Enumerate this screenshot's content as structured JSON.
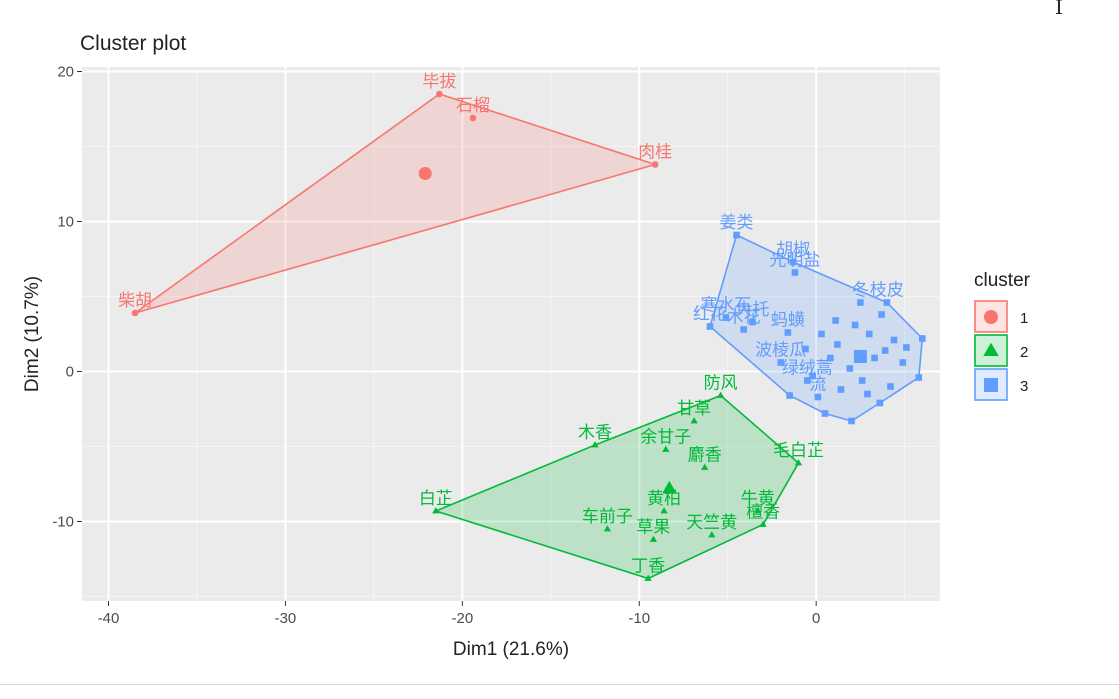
{
  "chart_data": {
    "type": "scatter",
    "title": "Cluster plot",
    "xlabel": "Dim1 (21.6%)",
    "ylabel": "Dim2 (10.7%)",
    "xlim": [
      -41.5,
      7
    ],
    "ylim": [
      -15.3,
      20.3
    ],
    "xticks": [
      -40,
      -30,
      -20,
      -10,
      0
    ],
    "yticks": [
      -10,
      0,
      10,
      20
    ],
    "xtick_labels": [
      "-40",
      "-30",
      "-20",
      "-10",
      "0"
    ],
    "ytick_labels": [
      "-10",
      "0",
      "10",
      "20"
    ],
    "grid": true,
    "legend": {
      "title": "cluster",
      "position": "right",
      "entries": [
        "1",
        "2",
        "3"
      ]
    },
    "colors": {
      "1": "#F8766D",
      "2": "#00BA38",
      "3": "#619CFF"
    },
    "series": [
      {
        "name": "1",
        "marker": "circle",
        "hull": [
          [
            -38.5,
            3.9
          ],
          [
            -21.3,
            18.5
          ],
          [
            -9.1,
            13.8
          ]
        ],
        "center": [
          -22.1,
          13.2
        ],
        "points": [
          {
            "x": -38.5,
            "y": 3.9,
            "label": "柴胡"
          },
          {
            "x": -21.3,
            "y": 18.5,
            "label": "毕拔"
          },
          {
            "x": -19.4,
            "y": 16.9,
            "label": "石榴"
          },
          {
            "x": -9.1,
            "y": 13.8,
            "label": "肉桂"
          }
        ]
      },
      {
        "name": "2",
        "marker": "triangle",
        "hull": [
          [
            -21.5,
            -9.3
          ],
          [
            -12.5,
            -4.9
          ],
          [
            -5.4,
            -1.6
          ],
          [
            -1.0,
            -6.1
          ],
          [
            -3.0,
            -10.2
          ],
          [
            -9.5,
            -13.8
          ]
        ],
        "center": [
          -8.3,
          -7.8
        ],
        "points": [
          {
            "x": -21.5,
            "y": -9.3,
            "label": "白芷"
          },
          {
            "x": -12.5,
            "y": -4.9,
            "label": "木香"
          },
          {
            "x": -8.5,
            "y": -5.2,
            "label": "余甘子"
          },
          {
            "x": -6.9,
            "y": -3.3,
            "label": "甘草"
          },
          {
            "x": -5.4,
            "y": -1.6,
            "label": "防风"
          },
          {
            "x": -6.3,
            "y": -6.4,
            "label": "麝香"
          },
          {
            "x": -1.0,
            "y": -6.1,
            "label": "毛白芷"
          },
          {
            "x": -8.6,
            "y": -9.3,
            "label": "黄柏"
          },
          {
            "x": -11.8,
            "y": -10.5,
            "label": "车前子"
          },
          {
            "x": -9.2,
            "y": -11.2,
            "label": "草果"
          },
          {
            "x": -5.9,
            "y": -10.9,
            "label": "天竺黄"
          },
          {
            "x": -3.3,
            "y": -9.3,
            "label": "牛黄"
          },
          {
            "x": -3.0,
            "y": -10.2,
            "label": "檀香"
          },
          {
            "x": -9.5,
            "y": -13.8,
            "label": "丁香"
          }
        ]
      },
      {
        "name": "3",
        "marker": "square",
        "hull": [
          [
            -4.5,
            9.1
          ],
          [
            -1.3,
            7.3
          ],
          [
            4.0,
            4.6
          ],
          [
            6.0,
            2.2
          ],
          [
            5.8,
            -0.4
          ],
          [
            3.6,
            -2.1
          ],
          [
            2.0,
            -3.3
          ],
          [
            0.5,
            -2.8
          ],
          [
            -1.5,
            -1.6
          ],
          [
            -6.0,
            3.0
          ]
        ],
        "center": [
          2.5,
          1.0
        ],
        "points": [
          {
            "x": -4.5,
            "y": 9.1,
            "label": "姜类"
          },
          {
            "x": -1.3,
            "y": 7.3,
            "label": "胡椒"
          },
          {
            "x": -1.2,
            "y": 6.6,
            "label": "光明盐"
          },
          {
            "x": -6.0,
            "y": 3.0,
            "label": "红花"
          },
          {
            "x": -5.1,
            "y": 3.6,
            "label": "寒水石"
          },
          {
            "x": -4.1,
            "y": 2.8,
            "label": "木花"
          },
          {
            "x": -3.6,
            "y": 3.3,
            "label": "大托"
          },
          {
            "x": -1.6,
            "y": 2.6,
            "label": "蚂蟥"
          },
          {
            "x": -2.0,
            "y": 0.6,
            "label": "波棱瓜"
          },
          {
            "x": -0.5,
            "y": -0.6,
            "label": "绿绒蒿"
          },
          {
            "x": 0.1,
            "y": -1.7,
            "label": "流"
          },
          {
            "x": 2.5,
            "y": 4.6,
            "label": "冬"
          },
          {
            "x": 4.0,
            "y": 4.6,
            "label": "枝皮"
          },
          {
            "x": 1.2,
            "y": 1.8
          },
          {
            "x": 2.2,
            "y": 3.1
          },
          {
            "x": 3.0,
            "y": 2.5
          },
          {
            "x": 3.7,
            "y": 3.8
          },
          {
            "x": 4.4,
            "y": 2.1
          },
          {
            "x": 5.1,
            "y": 1.6
          },
          {
            "x": 5.8,
            "y": -0.4
          },
          {
            "x": 4.9,
            "y": 0.6
          },
          {
            "x": 3.6,
            "y": -2.1
          },
          {
            "x": 2.0,
            "y": -3.3
          },
          {
            "x": 0.5,
            "y": -2.8
          },
          {
            "x": 1.4,
            "y": -1.2
          },
          {
            "x": 2.6,
            "y": -0.6
          },
          {
            "x": 3.3,
            "y": 0.9
          },
          {
            "x": 1.9,
            "y": 0.2
          },
          {
            "x": 0.8,
            "y": 0.9
          },
          {
            "x": -0.6,
            "y": 1.5
          },
          {
            "x": -0.2,
            "y": -0.3
          },
          {
            "x": 4.2,
            "y": -1.0
          },
          {
            "x": 2.9,
            "y": -1.5
          },
          {
            "x": 1.1,
            "y": 3.4
          },
          {
            "x": -1.5,
            "y": -1.6
          },
          {
            "x": 6.0,
            "y": 2.2
          },
          {
            "x": 3.9,
            "y": 1.4
          },
          {
            "x": 0.3,
            "y": 2.5
          }
        ]
      }
    ]
  }
}
